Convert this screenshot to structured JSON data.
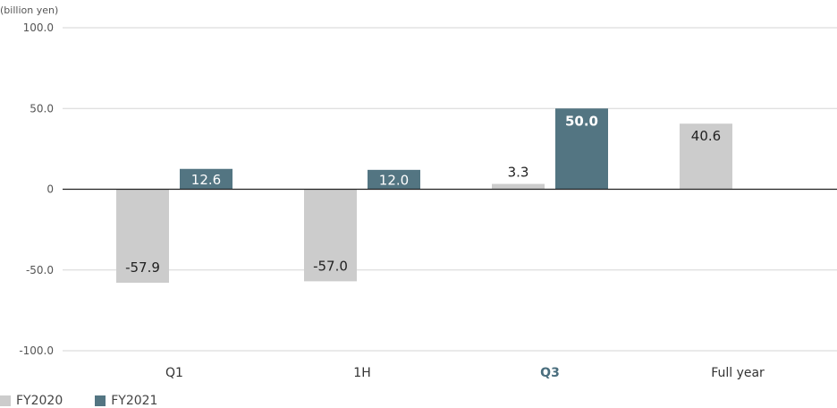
{
  "chart_data": {
    "type": "bar",
    "unit_label": "(billion yen)",
    "categories": [
      "Q1",
      "1H",
      "Q3",
      "Full year"
    ],
    "highlight_category": "Q3",
    "ylim": [
      -100,
      100
    ],
    "yticks": [
      {
        "value": 100,
        "label": "100.0"
      },
      {
        "value": 50,
        "label": "50.0"
      },
      {
        "value": 0,
        "label": "0"
      },
      {
        "value": -50,
        "label": "-50.0"
      },
      {
        "value": -100,
        "label": "-100.0"
      }
    ],
    "grid": true,
    "legend_position": "bottom-left",
    "series": [
      {
        "name": "FY2020",
        "color": "#cccccc",
        "values": [
          -57.9,
          -57.0,
          3.3,
          40.6
        ],
        "labels": [
          "-57.9",
          "-57.0",
          "3.3",
          "40.6"
        ]
      },
      {
        "name": "FY2021",
        "color": "#537582",
        "values": [
          12.6,
          12.0,
          50.0,
          null
        ],
        "labels": [
          "12.6",
          "12.0",
          "50.0",
          null
        ]
      }
    ]
  }
}
